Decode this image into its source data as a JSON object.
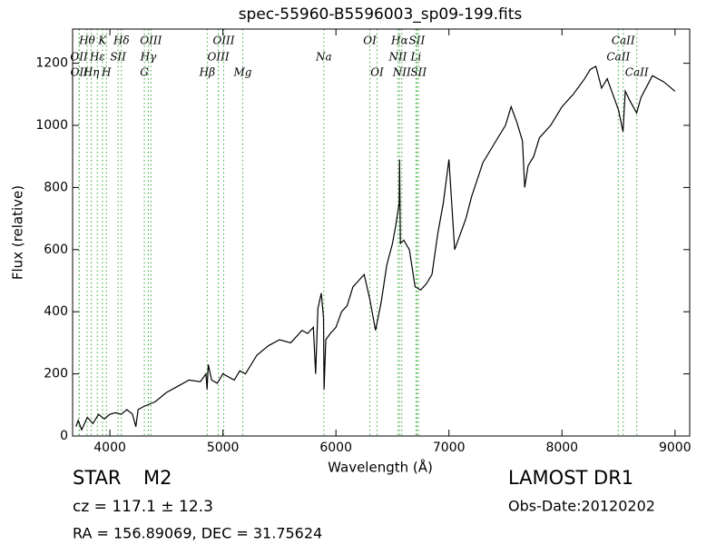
{
  "chart_data": {
    "type": "line",
    "title": "spec-55960-B5596003_sp09-199.fits",
    "xlabel": "Wavelength (Å)",
    "ylabel": "Flux (relative)",
    "color": "#000000",
    "xlim": [
      3670,
      9130
    ],
    "ylim": [
      0,
      1310
    ],
    "xticks": [
      4000,
      5000,
      6000,
      7000,
      8000,
      9000
    ],
    "yticks": [
      0,
      200,
      400,
      600,
      800,
      1000,
      1200
    ],
    "x": [
      3700,
      3720,
      3750,
      3800,
      3850,
      3900,
      3950,
      4000,
      4050,
      4100,
      4150,
      4200,
      4230,
      4250,
      4300,
      4400,
      4500,
      4600,
      4700,
      4800,
      4850,
      4860,
      4870,
      4900,
      4950,
      5000,
      5100,
      5150,
      5200,
      5300,
      5400,
      5500,
      5600,
      5700,
      5750,
      5800,
      5820,
      5840,
      5870,
      5890,
      5895,
      5910,
      5950,
      6000,
      6050,
      6100,
      6150,
      6200,
      6250,
      6300,
      6350,
      6400,
      6450,
      6500,
      6530,
      6560,
      6563,
      6570,
      6600,
      6650,
      6700,
      6750,
      6800,
      6850,
      6900,
      6950,
      7000,
      7050,
      7100,
      7150,
      7200,
      7300,
      7400,
      7500,
      7550,
      7600,
      7650,
      7670,
      7700,
      7750,
      7800,
      7900,
      8000,
      8100,
      8200,
      8250,
      8300,
      8350,
      8400,
      8450,
      8500,
      8540,
      8560,
      8600,
      8660,
      8700,
      8800,
      8900,
      9000
    ],
    "values": [
      30,
      50,
      20,
      60,
      40,
      70,
      55,
      70,
      75,
      70,
      85,
      70,
      30,
      85,
      95,
      110,
      140,
      160,
      180,
      175,
      200,
      150,
      230,
      180,
      170,
      200,
      180,
      210,
      200,
      260,
      290,
      310,
      300,
      340,
      330,
      350,
      200,
      410,
      460,
      380,
      150,
      310,
      330,
      350,
      400,
      420,
      480,
      500,
      520,
      440,
      340,
      430,
      550,
      620,
      680,
      750,
      890,
      620,
      630,
      600,
      480,
      470,
      490,
      520,
      650,
      750,
      890,
      600,
      650,
      700,
      770,
      880,
      940,
      1000,
      1060,
      1010,
      950,
      800,
      870,
      900,
      960,
      1000,
      1060,
      1100,
      1150,
      1180,
      1190,
      1120,
      1150,
      1100,
      1050,
      980,
      1110,
      1080,
      1040,
      1090,
      1160,
      1140,
      1110
    ],
    "line_color": "#33aa33",
    "spectral_lines": [
      [
        {
          "wavelength": 3798,
          "label": "Hθ"
        },
        {
          "wavelength": 3934,
          "label": "K"
        },
        {
          "wavelength": 4102,
          "label": "Hδ"
        },
        {
          "wavelength": 4363,
          "label": "OIII"
        },
        {
          "wavelength": 5007,
          "label": "OIII"
        },
        {
          "wavelength": 6300,
          "label": "OI"
        },
        {
          "wavelength": 6563,
          "label": "Hα"
        },
        {
          "wavelength": 6716,
          "label": "SII"
        },
        {
          "wavelength": 8542,
          "label": "CaII"
        }
      ],
      [
        {
          "wavelength": 3727,
          "label": "OII"
        },
        {
          "wavelength": 3889,
          "label": "Hε"
        },
        {
          "wavelength": 4072,
          "label": "SII"
        },
        {
          "wavelength": 4340,
          "label": "Hγ"
        },
        {
          "wavelength": 4959,
          "label": "OIII"
        },
        {
          "wavelength": 5893,
          "label": "Na"
        },
        {
          "wavelength": 6548,
          "label": "NII"
        },
        {
          "wavelength": 6708,
          "label": "Li"
        },
        {
          "wavelength": 8498,
          "label": "CaII"
        }
      ],
      [
        {
          "wavelength": 3729,
          "label": "OII"
        },
        {
          "wavelength": 3835,
          "label": "Hη"
        },
        {
          "wavelength": 3969,
          "label": "H"
        },
        {
          "wavelength": 4305,
          "label": "G"
        },
        {
          "wavelength": 4861,
          "label": "Hβ"
        },
        {
          "wavelength": 5175,
          "label": "Mg"
        },
        {
          "wavelength": 6364,
          "label": "OI"
        },
        {
          "wavelength": 6583,
          "label": "NII"
        },
        {
          "wavelength": 6731,
          "label": "SII"
        },
        {
          "wavelength": 8662,
          "label": "CaII"
        }
      ]
    ]
  },
  "info": {
    "object_class": "STAR",
    "subclass": "M2",
    "cz": "cz = 117.1 ± 12.3",
    "coords": "RA = 156.89069, DEC = 31.75624",
    "survey": "LAMOST DR1",
    "obs_date": "Obs-Date:20120202"
  }
}
